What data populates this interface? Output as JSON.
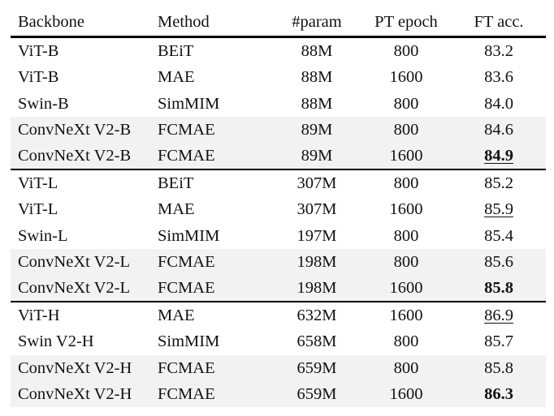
{
  "table": {
    "headers": [
      "Backbone",
      "Method",
      "#param",
      "PT epoch",
      "FT acc."
    ],
    "groups": [
      [
        {
          "backbone": "ViT-B",
          "method": "BEiT",
          "param": "88M",
          "epoch": "800",
          "acc": "83.2",
          "highlight": false,
          "bold": false,
          "underline": false
        },
        {
          "backbone": "ViT-B",
          "method": "MAE",
          "param": "88M",
          "epoch": "1600",
          "acc": "83.6",
          "highlight": false,
          "bold": false,
          "underline": false
        },
        {
          "backbone": "Swin-B",
          "method": "SimMIM",
          "param": "88M",
          "epoch": "800",
          "acc": "84.0",
          "highlight": false,
          "bold": false,
          "underline": false
        },
        {
          "backbone": "ConvNeXt V2-B",
          "method": "FCMAE",
          "param": "89M",
          "epoch": "800",
          "acc": "84.6",
          "highlight": true,
          "bold": false,
          "underline": false
        },
        {
          "backbone": "ConvNeXt V2-B",
          "method": "FCMAE",
          "param": "89M",
          "epoch": "1600",
          "acc": "84.9",
          "highlight": true,
          "bold": true,
          "underline": true
        }
      ],
      [
        {
          "backbone": "ViT-L",
          "method": "BEiT",
          "param": "307M",
          "epoch": "800",
          "acc": "85.2",
          "highlight": false,
          "bold": false,
          "underline": false
        },
        {
          "backbone": "ViT-L",
          "method": "MAE",
          "param": "307M",
          "epoch": "1600",
          "acc": "85.9",
          "highlight": false,
          "bold": false,
          "underline": true
        },
        {
          "backbone": "Swin-L",
          "method": "SimMIM",
          "param": "197M",
          "epoch": "800",
          "acc": "85.4",
          "highlight": false,
          "bold": false,
          "underline": false
        },
        {
          "backbone": "ConvNeXt V2-L",
          "method": "FCMAE",
          "param": "198M",
          "epoch": "800",
          "acc": "85.6",
          "highlight": true,
          "bold": false,
          "underline": false
        },
        {
          "backbone": "ConvNeXt V2-L",
          "method": "FCMAE",
          "param": "198M",
          "epoch": "1600",
          "acc": "85.8",
          "highlight": true,
          "bold": true,
          "underline": false
        }
      ],
      [
        {
          "backbone": "ViT-H",
          "method": "MAE",
          "param": "632M",
          "epoch": "1600",
          "acc": "86.9",
          "highlight": false,
          "bold": false,
          "underline": true
        },
        {
          "backbone": "Swin V2-H",
          "method": "SimMIM",
          "param": "658M",
          "epoch": "800",
          "acc": "85.7",
          "highlight": false,
          "bold": false,
          "underline": false
        },
        {
          "backbone": "ConvNeXt V2-H",
          "method": "FCMAE",
          "param": "659M",
          "epoch": "800",
          "acc": "85.8",
          "highlight": true,
          "bold": false,
          "underline": false
        },
        {
          "backbone": "ConvNeXt V2-H",
          "method": "FCMAE",
          "param": "659M",
          "epoch": "1600",
          "acc": "86.3",
          "highlight": true,
          "bold": true,
          "underline": false
        }
      ]
    ],
    "highlight_color": "#f2f2f2"
  }
}
